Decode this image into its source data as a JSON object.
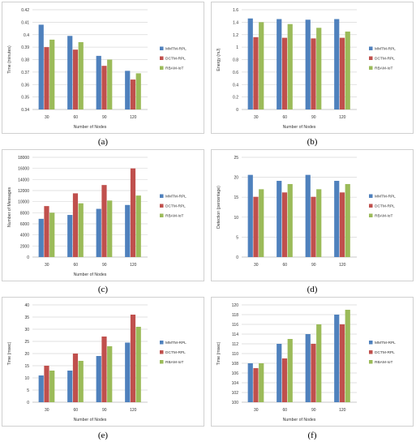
{
  "series_colors": {
    "MMTM-RPL": "#4f81bd",
    "DCTM-RPL": "#c0504d",
    "RBAM-IoT": "#9bbb59"
  },
  "chart_data": [
    {
      "panel": "(a)",
      "type": "bar",
      "categories": [
        "30",
        "60",
        "90",
        "120"
      ],
      "series": [
        {
          "name": "MMTM-RPL",
          "values": [
            0.408,
            0.399,
            0.383,
            0.371
          ]
        },
        {
          "name": "DCTM-RPL",
          "values": [
            0.39,
            0.388,
            0.375,
            0.364
          ]
        },
        {
          "name": "RBAM-IoT",
          "values": [
            0.396,
            0.394,
            0.38,
            0.369
          ]
        }
      ],
      "title": "",
      "xlabel": "Number of Nodes",
      "ylabel": "Time (minutes)",
      "ylim": [
        0.34,
        0.42
      ],
      "yticks": [
        "0.34",
        "0.35",
        "0.36",
        "0.37",
        "0.38",
        "0.39",
        "0.4",
        "0.41",
        "0.42"
      ],
      "grid": true,
      "legend": "right"
    },
    {
      "panel": "(b)",
      "type": "bar",
      "categories": [
        "30",
        "60",
        "90",
        "120"
      ],
      "series": [
        {
          "name": "MMTM-RPL",
          "values": [
            1.46,
            1.45,
            1.44,
            1.45
          ]
        },
        {
          "name": "DCTM-RPL",
          "values": [
            1.16,
            1.15,
            1.14,
            1.15
          ]
        },
        {
          "name": "RBAM-IoT",
          "values": [
            1.4,
            1.37,
            1.31,
            1.25
          ]
        }
      ],
      "title": "",
      "xlabel": "Number of Nodes",
      "ylabel": "Energy (mJ)",
      "ylim": [
        0,
        1.6
      ],
      "yticks": [
        "0",
        "0.2",
        "0.4",
        "0.6",
        "0.8",
        "1",
        "1.2",
        "1.4",
        "1.6"
      ],
      "grid": true,
      "legend": "right"
    },
    {
      "panel": "(c)",
      "type": "bar",
      "categories": [
        "30",
        "60",
        "90",
        "120"
      ],
      "series": [
        {
          "name": "MMTM-RPL",
          "values": [
            6900,
            7600,
            8700,
            9400
          ]
        },
        {
          "name": "DCTM-RPL",
          "values": [
            9200,
            11500,
            13000,
            16000
          ]
        },
        {
          "name": "RBAM-IoT",
          "values": [
            8000,
            9700,
            10200,
            11100
          ]
        }
      ],
      "title": "",
      "xlabel": "Number of Nodes",
      "ylabel": "Number of Messages",
      "ylim": [
        0,
        18000
      ],
      "yticks": [
        "0",
        "2000",
        "4000",
        "6000",
        "8000",
        "10000",
        "12000",
        "14000",
        "16000",
        "18000"
      ],
      "grid": true,
      "legend": "right"
    },
    {
      "panel": "(d)",
      "type": "bar",
      "categories": [
        "30",
        "60",
        "90",
        "120"
      ],
      "series": [
        {
          "name": "MMTM-RPL",
          "values": [
            20.6,
            19.1,
            20.6,
            19.1
          ]
        },
        {
          "name": "DCTM-RPL",
          "values": [
            15.1,
            16.2,
            15.1,
            16.2
          ]
        },
        {
          "name": "RBAM-IoT",
          "values": [
            17.0,
            18.3,
            17.0,
            18.3
          ]
        }
      ],
      "title": "",
      "xlabel": "",
      "ylabel": "Detection (percentage)",
      "ylim": [
        0,
        25
      ],
      "yticks": [
        "0",
        "5",
        "10",
        "15",
        "20",
        "25"
      ],
      "grid": true,
      "legend": "right"
    },
    {
      "panel": "(e)",
      "type": "bar",
      "categories": [
        "30",
        "60",
        "90",
        "120"
      ],
      "series": [
        {
          "name": "MMTM-RPL",
          "values": [
            11,
            13,
            19,
            24.5
          ]
        },
        {
          "name": "DCTM-RPL",
          "values": [
            15,
            20,
            27,
            36
          ]
        },
        {
          "name": "RBAM-IoT",
          "values": [
            13,
            17,
            23,
            31
          ]
        }
      ],
      "title": "",
      "xlabel": "Number of Nodes",
      "ylabel": "Time (msec)",
      "ylim": [
        0,
        40
      ],
      "yticks": [
        "0",
        "5",
        "10",
        "15",
        "20",
        "25",
        "30",
        "35",
        "40"
      ],
      "grid": true,
      "legend": "right"
    },
    {
      "panel": "(f)",
      "type": "bar",
      "categories": [
        "30",
        "60",
        "90",
        "120"
      ],
      "series": [
        {
          "name": "MMTM-RPL",
          "values": [
            108,
            112,
            114,
            118
          ]
        },
        {
          "name": "DCTM-RPL",
          "values": [
            107,
            109,
            112,
            116
          ]
        },
        {
          "name": "RBAM-IoT",
          "values": [
            108,
            113,
            116,
            119
          ]
        }
      ],
      "title": "",
      "xlabel": "Number of Nodes",
      "ylabel": "Time (msec)",
      "ylim": [
        100,
        120
      ],
      "yticks": [
        "100",
        "102",
        "104",
        "106",
        "108",
        "110",
        "112",
        "114",
        "116",
        "118",
        "120"
      ],
      "grid": true,
      "legend": "right"
    }
  ]
}
